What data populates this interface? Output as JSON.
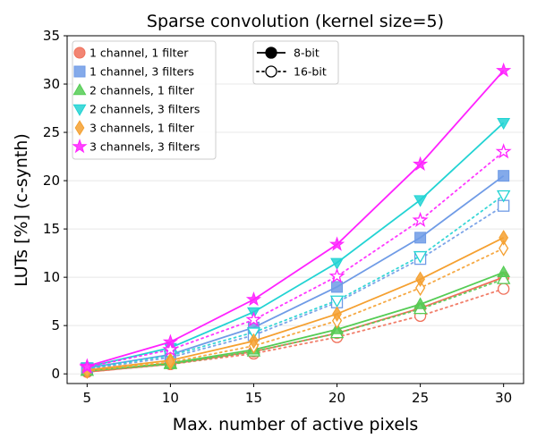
{
  "chart_data": {
    "type": "line",
    "title": "Sparse convolution (kernel size=5)",
    "xlabel": "Max. number of active pixels",
    "ylabel": "LUTs [%] (c-synth)",
    "x": [
      5,
      10,
      15,
      20,
      25,
      30
    ],
    "xticks": [
      5,
      10,
      15,
      20,
      25,
      30
    ],
    "yticks": [
      0,
      5,
      10,
      15,
      20,
      25,
      30,
      35
    ],
    "xlim": [
      3.8,
      31.2
    ],
    "ylim": [
      -1,
      35
    ],
    "grid": "horizontal",
    "legend_series_placement": "top-left",
    "legend_style_placement": "top-center",
    "style_legend": [
      {
        "label": "8-bit",
        "line": "solid",
        "marker": "filled"
      },
      {
        "label": "16-bit",
        "line": "dotted",
        "marker": "hollow"
      }
    ],
    "series": [
      {
        "name": "1 channel, 1 filter",
        "color": "#f0705a",
        "marker": "circle",
        "values_8bit": [
          0.2,
          1.0,
          2.3,
          4.2,
          6.8,
          10.0
        ],
        "values_16bit": [
          0.2,
          1.0,
          2.1,
          3.8,
          6.0,
          8.8
        ]
      },
      {
        "name": "1 channel, 3 filters",
        "color": "#6f9be6",
        "marker": "square",
        "values_8bit": [
          0.6,
          2.0,
          4.8,
          9.0,
          14.1,
          20.5
        ],
        "values_16bit": [
          0.5,
          1.7,
          4.0,
          7.4,
          11.9,
          17.4
        ]
      },
      {
        "name": "2 channels, 1 filter",
        "color": "#55cc55",
        "marker": "triangle-up",
        "values_8bit": [
          0.3,
          1.1,
          2.5,
          4.6,
          7.2,
          10.5
        ],
        "values_16bit": [
          0.3,
          1.0,
          2.3,
          4.2,
          6.7,
          9.8
        ]
      },
      {
        "name": "2 channels, 3 filters",
        "color": "#22d3d3",
        "marker": "triangle-down",
        "values_8bit": [
          0.7,
          2.7,
          6.4,
          11.5,
          18.0,
          26.0
        ],
        "values_16bit": [
          0.6,
          1.9,
          4.3,
          7.6,
          12.2,
          18.5
        ]
      },
      {
        "name": "3 channels, 1 filter",
        "color": "#f5a030",
        "marker": "diamond",
        "values_8bit": [
          0.4,
          1.4,
          3.4,
          6.2,
          9.8,
          14.1
        ],
        "values_16bit": [
          0.3,
          1.2,
          2.9,
          5.5,
          8.9,
          13.0
        ]
      },
      {
        "name": "3 channels, 3 filters",
        "color": "#ff22ff",
        "marker": "star",
        "values_8bit": [
          0.8,
          3.3,
          7.7,
          13.4,
          21.7,
          31.4
        ],
        "values_16bit": [
          0.7,
          2.5,
          5.6,
          10.1,
          15.9,
          23.0
        ]
      }
    ]
  }
}
